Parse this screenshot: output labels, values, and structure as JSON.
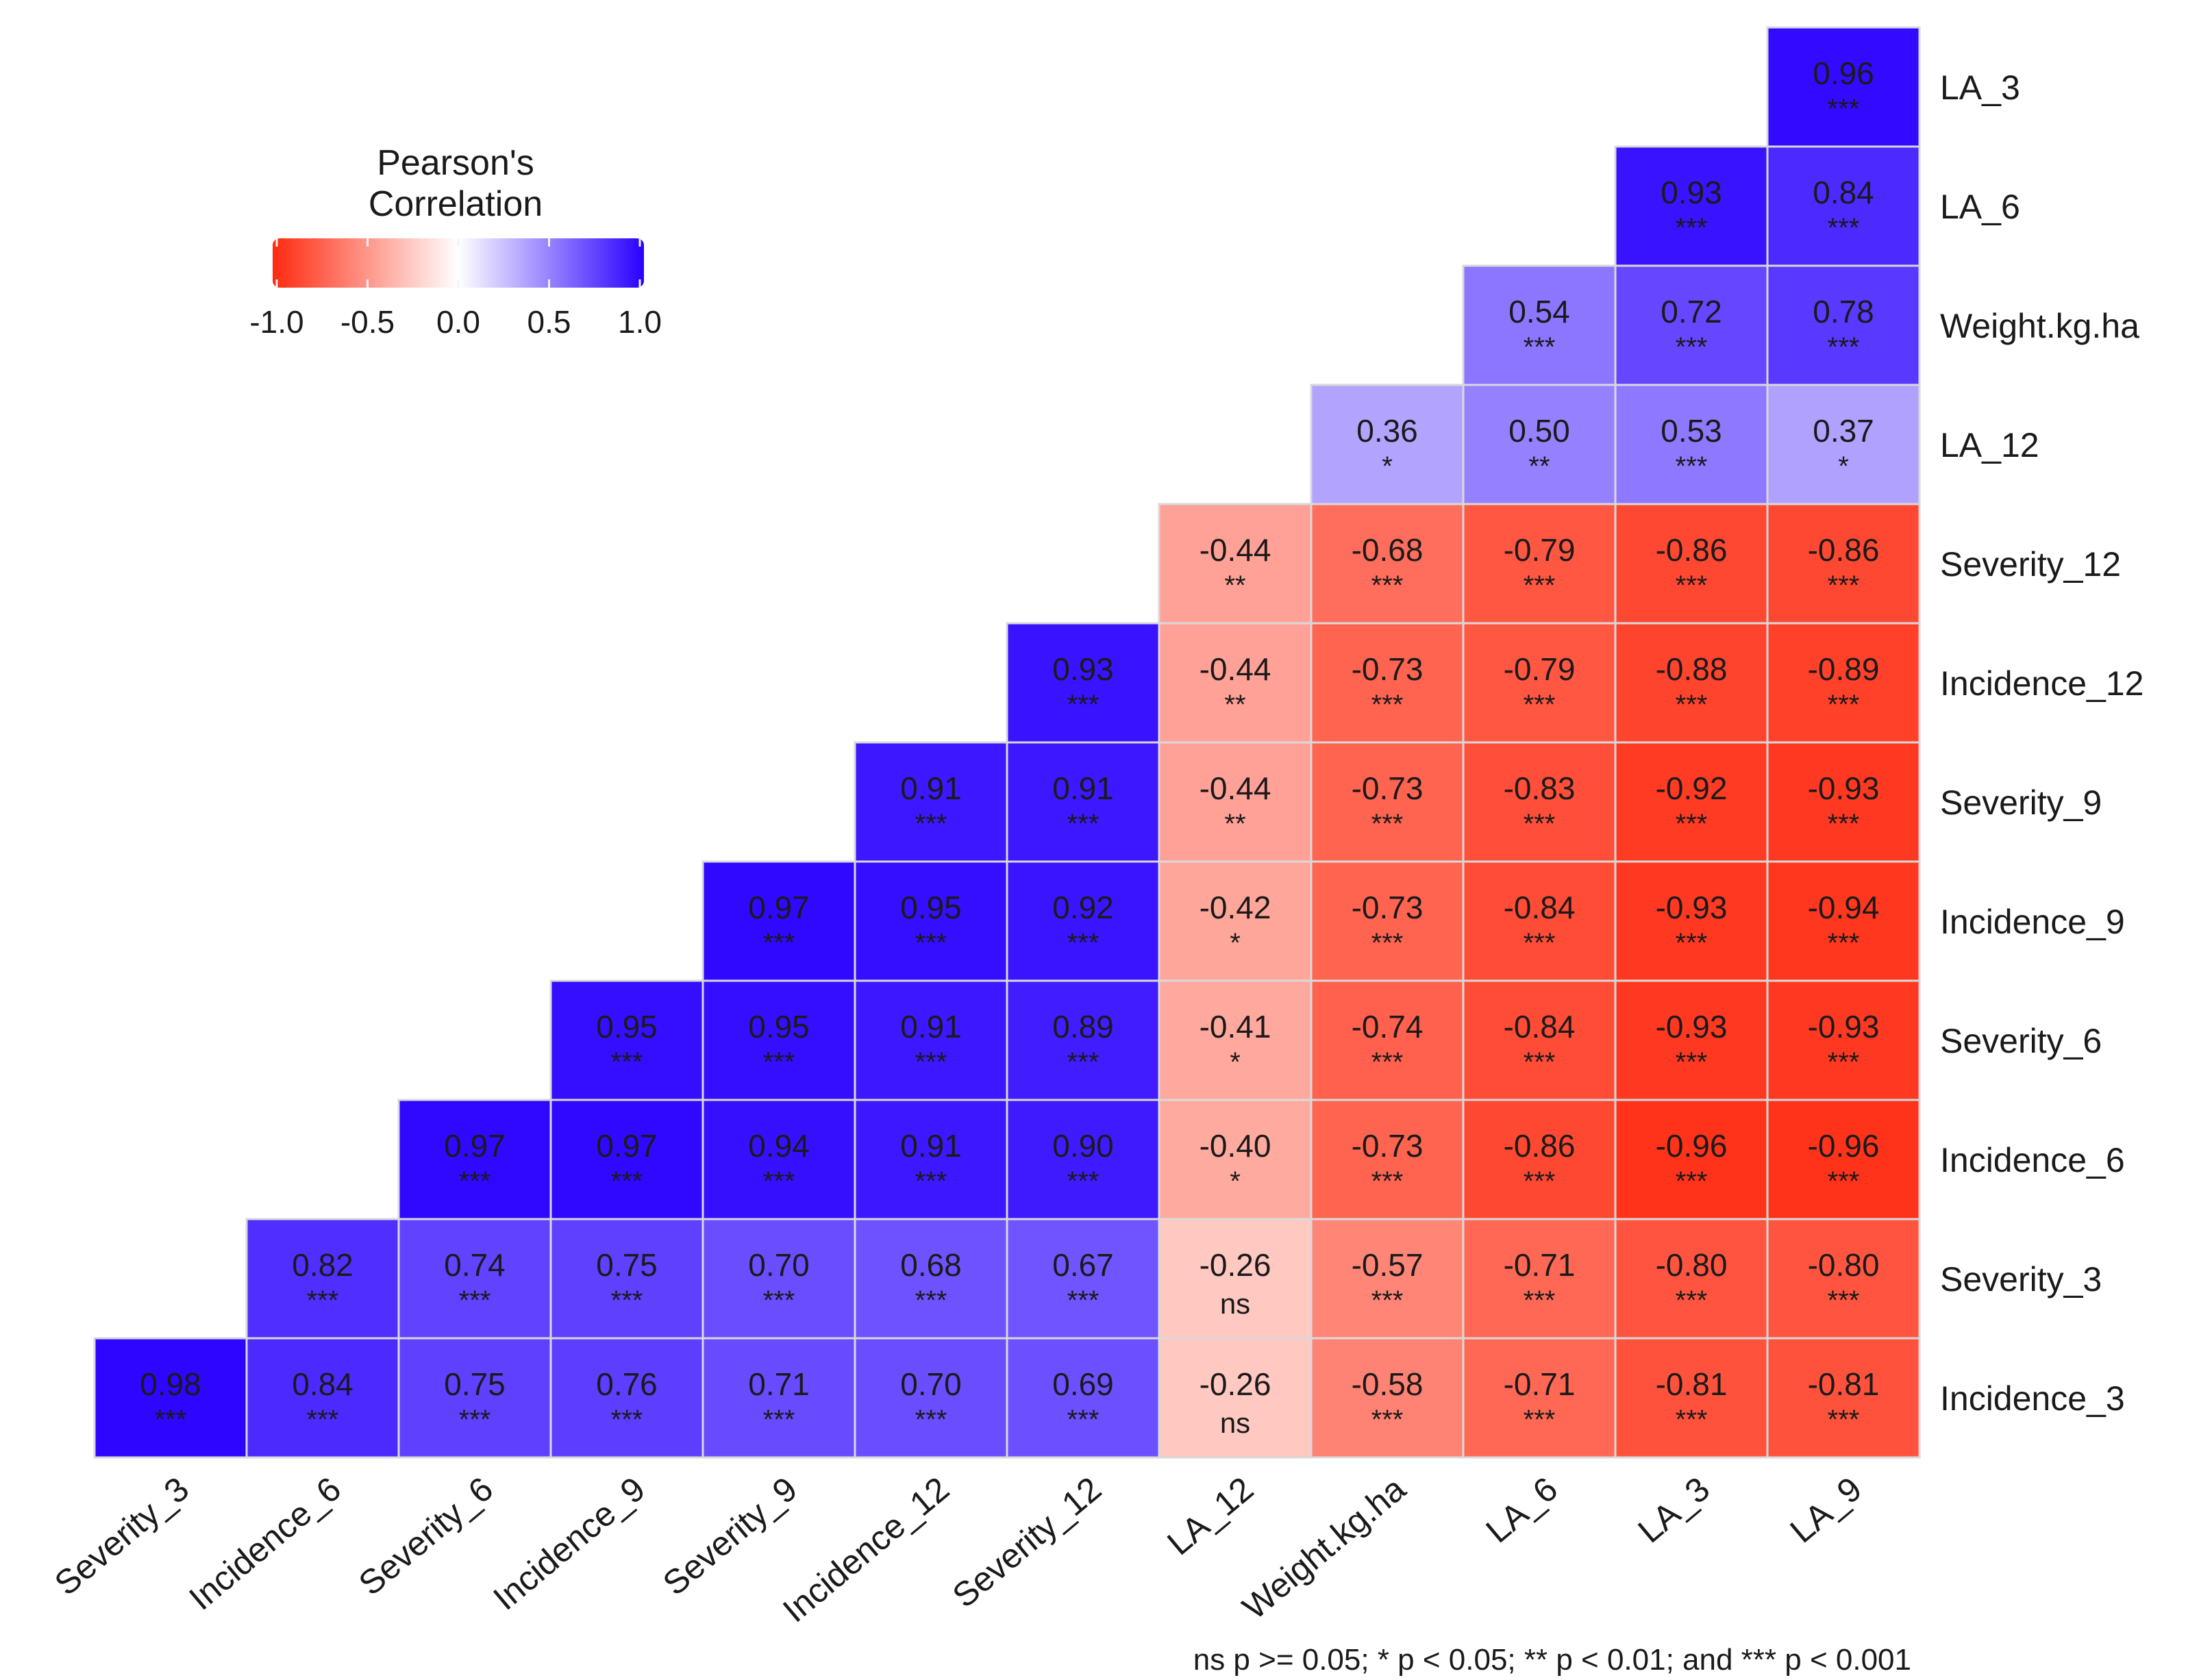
{
  "chart_data": {
    "type": "heatmap",
    "title": "",
    "x_labels": [
      "Severity_3",
      "Incidence_6",
      "Severity_6",
      "Incidence_9",
      "Severity_9",
      "Incidence_12",
      "Severity_12",
      "LA_12",
      "Weight.kg.ha",
      "LA_6",
      "LA_3",
      "LA_9"
    ],
    "y_labels": [
      "LA_3",
      "LA_6",
      "Weight.kg.ha",
      "LA_12",
      "Severity_12",
      "Incidence_12",
      "Severity_9",
      "Incidence_9",
      "Severity_6",
      "Incidence_6",
      "Severity_3",
      "Incidence_3"
    ],
    "values": [
      [
        null,
        null,
        null,
        null,
        null,
        null,
        null,
        null,
        null,
        null,
        null,
        0.96
      ],
      [
        null,
        null,
        null,
        null,
        null,
        null,
        null,
        null,
        null,
        null,
        0.93,
        0.84
      ],
      [
        null,
        null,
        null,
        null,
        null,
        null,
        null,
        null,
        null,
        0.54,
        0.72,
        0.78
      ],
      [
        null,
        null,
        null,
        null,
        null,
        null,
        null,
        null,
        0.36,
        0.5,
        0.53,
        0.37
      ],
      [
        null,
        null,
        null,
        null,
        null,
        null,
        null,
        -0.44,
        -0.68,
        -0.79,
        -0.86,
        -0.86
      ],
      [
        null,
        null,
        null,
        null,
        null,
        null,
        0.93,
        -0.44,
        -0.73,
        -0.79,
        -0.88,
        -0.89
      ],
      [
        null,
        null,
        null,
        null,
        null,
        0.91,
        0.91,
        -0.44,
        -0.73,
        -0.83,
        -0.92,
        -0.93
      ],
      [
        null,
        null,
        null,
        null,
        0.97,
        0.95,
        0.92,
        -0.42,
        -0.73,
        -0.84,
        -0.93,
        -0.94
      ],
      [
        null,
        null,
        null,
        0.95,
        0.95,
        0.91,
        0.89,
        -0.41,
        -0.74,
        -0.84,
        -0.93,
        -0.93
      ],
      [
        null,
        null,
        0.97,
        0.97,
        0.94,
        0.91,
        0.9,
        -0.4,
        -0.73,
        -0.86,
        -0.96,
        -0.96
      ],
      [
        null,
        0.82,
        0.74,
        0.75,
        0.7,
        0.68,
        0.67,
        -0.26,
        -0.57,
        -0.71,
        -0.8,
        -0.8
      ],
      [
        0.98,
        0.84,
        0.75,
        0.76,
        0.71,
        0.7,
        0.69,
        -0.26,
        -0.58,
        -0.71,
        -0.81,
        -0.81
      ]
    ],
    "significance": [
      [
        null,
        null,
        null,
        null,
        null,
        null,
        null,
        null,
        null,
        null,
        null,
        "***"
      ],
      [
        null,
        null,
        null,
        null,
        null,
        null,
        null,
        null,
        null,
        null,
        "***",
        "***"
      ],
      [
        null,
        null,
        null,
        null,
        null,
        null,
        null,
        null,
        null,
        "***",
        "***",
        "***"
      ],
      [
        null,
        null,
        null,
        null,
        null,
        null,
        null,
        null,
        "*",
        "**",
        "***",
        "*"
      ],
      [
        null,
        null,
        null,
        null,
        null,
        null,
        null,
        "**",
        "***",
        "***",
        "***",
        "***"
      ],
      [
        null,
        null,
        null,
        null,
        null,
        null,
        "***",
        "**",
        "***",
        "***",
        "***",
        "***"
      ],
      [
        null,
        null,
        null,
        null,
        null,
        "***",
        "***",
        "**",
        "***",
        "***",
        "***",
        "***"
      ],
      [
        null,
        null,
        null,
        null,
        "***",
        "***",
        "***",
        "*",
        "***",
        "***",
        "***",
        "***"
      ],
      [
        null,
        null,
        null,
        "***",
        "***",
        "***",
        "***",
        "*",
        "***",
        "***",
        "***",
        "***"
      ],
      [
        null,
        null,
        "***",
        "***",
        "***",
        "***",
        "***",
        "*",
        "***",
        "***",
        "***",
        "***"
      ],
      [
        null,
        "***",
        "***",
        "***",
        "***",
        "***",
        "***",
        "ns",
        "***",
        "***",
        "***",
        "***"
      ],
      [
        "***",
        "***",
        "***",
        "***",
        "***",
        "***",
        "***",
        "ns",
        "***",
        "***",
        "***",
        "***"
      ]
    ],
    "legend": {
      "title_line1": "Pearson's",
      "title_line2": "Correlation",
      "ticks": [
        "-1.0",
        "-0.5",
        "0.0",
        "0.5",
        "1.0"
      ],
      "tick_values": [
        -1.0,
        -0.5,
        0.0,
        0.5,
        1.0
      ],
      "range": [
        -1.0,
        1.0
      ],
      "placement": "top-left"
    },
    "colors": {
      "low": "#ff2a10",
      "mid": "#ffffff",
      "high": "#2a00ff"
    },
    "footnote": "ns p >= 0.05; * p < 0.05; ** p < 0.01; and *** p < 0.001"
  }
}
